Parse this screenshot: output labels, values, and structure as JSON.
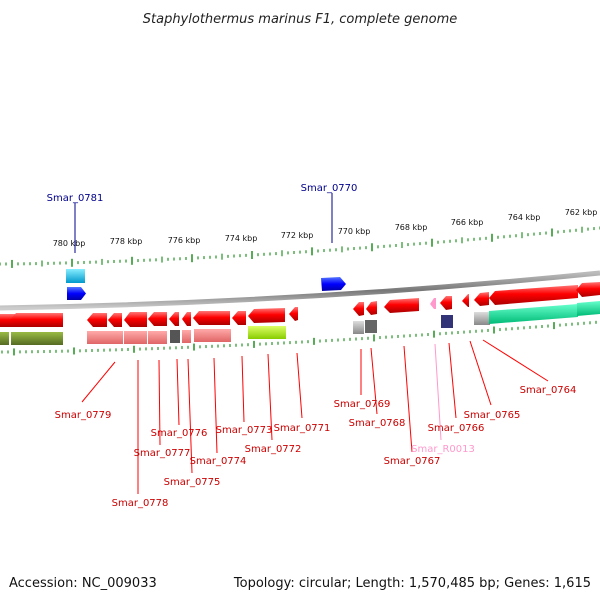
{
  "title": "Staphylothermus marinus F1, complete genome",
  "footer": {
    "accession": "Accession: NC_009033",
    "summary": "Topology: circular; Length: 1,570,485 bp; Genes: 1,615"
  },
  "colors": {
    "cds": "#ff0000",
    "cds_top": "#0000ff",
    "trna": "#ff99cc",
    "backbone": "#888888",
    "ticks": "#118811"
  },
  "kbp_ticks": [
    "780 kbp",
    "778 kbp",
    "776 kbp",
    "774 kbp",
    "772 kbp",
    "770 kbp",
    "768 kbp",
    "766 kbp",
    "764 kbp",
    "762 kbp"
  ],
  "top_labels": [
    "Smar_0781",
    "Smar_0770"
  ],
  "bottom_labels": [
    "Smar_0779",
    "Smar_0778",
    "Smar_0777",
    "Smar_0776",
    "Smar_0775",
    "Smar_0774",
    "Smar_0773",
    "Smar_0772",
    "Smar_0771",
    "Smar_0769",
    "Smar_0768",
    "Smar_0767",
    "Smar_R0013",
    "Smar_0766",
    "Smar_0765",
    "Smar_0764"
  ]
}
